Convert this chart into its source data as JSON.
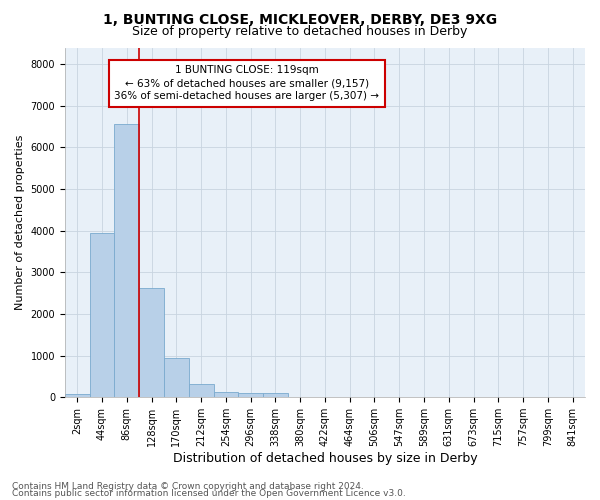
{
  "title_line1": "1, BUNTING CLOSE, MICKLEOVER, DERBY, DE3 9XG",
  "title_line2": "Size of property relative to detached houses in Derby",
  "xlabel": "Distribution of detached houses by size in Derby",
  "ylabel": "Number of detached properties",
  "bar_color": "#b8d0e8",
  "bar_edge_color": "#7aaace",
  "categories": [
    "2sqm",
    "44sqm",
    "86sqm",
    "128sqm",
    "170sqm",
    "212sqm",
    "254sqm",
    "296sqm",
    "338sqm",
    "380sqm",
    "422sqm",
    "464sqm",
    "506sqm",
    "547sqm",
    "589sqm",
    "631sqm",
    "673sqm",
    "715sqm",
    "757sqm",
    "799sqm",
    "841sqm"
  ],
  "values": [
    70,
    3950,
    6560,
    2620,
    950,
    310,
    130,
    110,
    95,
    0,
    0,
    0,
    0,
    0,
    0,
    0,
    0,
    0,
    0,
    0,
    0
  ],
  "ylim": [
    0,
    8400
  ],
  "yticks": [
    0,
    1000,
    2000,
    3000,
    4000,
    5000,
    6000,
    7000,
    8000
  ],
  "vline_x": 2.5,
  "vline_color": "#cc0000",
  "annotation_line1": "1 BUNTING CLOSE: 119sqm",
  "annotation_line2": "← 63% of detached houses are smaller (9,157)",
  "annotation_line3": "36% of semi-detached houses are larger (5,307) →",
  "annotation_box_color": "#ffffff",
  "annotation_box_edge": "#cc0000",
  "grid_color": "#c8d4e0",
  "background_color": "#e8f0f8",
  "footer_line1": "Contains HM Land Registry data © Crown copyright and database right 2024.",
  "footer_line2": "Contains public sector information licensed under the Open Government Licence v3.0.",
  "title_fontsize": 10,
  "subtitle_fontsize": 9,
  "xlabel_fontsize": 9,
  "ylabel_fontsize": 8,
  "tick_fontsize": 7,
  "annotation_fontsize": 7.5,
  "footer_fontsize": 6.5
}
